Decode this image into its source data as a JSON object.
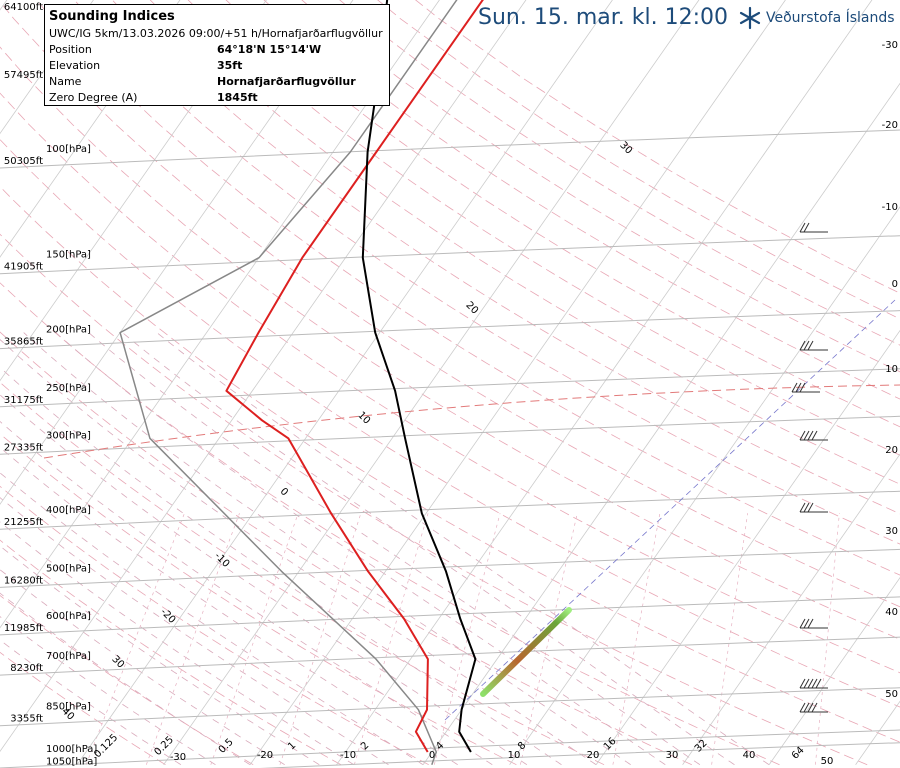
{
  "header": {
    "date": "Sun. 15. mar. kl. 12:00",
    "brand": "Veðurstofa Íslands"
  },
  "info_box": {
    "title": "Sounding Indices",
    "model_line": "UWC/IG 5km/13.03.2026 09:00/+51 h/Hornafjarðarflugvöllur",
    "rows": [
      {
        "label": "Position",
        "value": "64°18'N 15°14'W"
      },
      {
        "label": "Elevation",
        "value": "35ft"
      },
      {
        "label": "Name",
        "value": "Hornafjarðarflugvöllur"
      },
      {
        "label": "Zero Degree (A)",
        "value": "1845ft"
      }
    ]
  },
  "chart_data": {
    "type": "line",
    "colors": {
      "temperature": "#dd2020",
      "dewpoint": "#000000",
      "parcel": "#888888",
      "isobar": "#bbbbbb"
    },
    "pressure_levels": [
      {
        "hpa": 100,
        "label": "100[hPa]",
        "alt": "50305ft"
      },
      {
        "hpa": 150,
        "label": "150[hPa]",
        "alt": "41905ft"
      },
      {
        "hpa": 200,
        "label": "200[hPa]",
        "alt": "35865ft"
      },
      {
        "hpa": 250,
        "label": "250[hPa]",
        "alt": "31175ft"
      },
      {
        "hpa": 300,
        "label": "300[hPa]",
        "alt": "27335ft"
      },
      {
        "hpa": 400,
        "label": "400[hPa]",
        "alt": "21255ft"
      },
      {
        "hpa": 500,
        "label": "500[hPa]",
        "alt": "16280ft"
      },
      {
        "hpa": 600,
        "label": "600[hPa]",
        "alt": "11985ft"
      },
      {
        "hpa": 700,
        "label": "700[hPa]",
        "alt": "8230ft"
      },
      {
        "hpa": 850,
        "label": "850[hPa]",
        "alt": "3355ft"
      },
      {
        "hpa": 1000,
        "label": "1000[hPa]",
        "alt": ""
      },
      {
        "hpa": 1050,
        "label": "1050[hPa]",
        "alt": ""
      }
    ],
    "top_altitudes": [
      "64100ft",
      "57495ft"
    ],
    "right_axis": [
      "-30",
      "-20",
      "-10",
      "0",
      "10",
      "20",
      "30",
      "40",
      "50"
    ],
    "bottom_temps": [
      "-30",
      "-20",
      "-10",
      "0",
      "10",
      "20",
      "30",
      "40",
      "50"
    ],
    "mixing_ratios": [
      "0.125",
      "0.25",
      "0.5",
      "1",
      "2",
      "4",
      "8",
      "16",
      "32",
      "64"
    ],
    "isotherm_labels": [
      "30",
      "20",
      "10",
      "0",
      "-10",
      "-20",
      "30",
      "40"
    ],
    "temperature": [
      [
        1000,
        -0.5
      ],
      [
        925,
        -3.5
      ],
      [
        850,
        -4.0
      ],
      [
        700,
        -8.0
      ],
      [
        600,
        -14.0
      ],
      [
        500,
        -22.0
      ],
      [
        400,
        -31.0
      ],
      [
        300,
        -42.0
      ],
      [
        280,
        -46.5
      ],
      [
        250,
        -53.0
      ],
      [
        200,
        -54.0
      ],
      [
        150,
        -55.0
      ],
      [
        100,
        -55.0
      ],
      [
        70,
        -55.0
      ],
      [
        50,
        -55.0
      ]
    ],
    "dewpoint": [
      [
        1000,
        4.5
      ],
      [
        925,
        1.5
      ],
      [
        850,
        0.0
      ],
      [
        700,
        -2.5
      ],
      [
        600,
        -7.5
      ],
      [
        500,
        -13.0
      ],
      [
        400,
        -20.5
      ],
      [
        300,
        -28.5
      ],
      [
        250,
        -33.5
      ],
      [
        200,
        -40.5
      ],
      [
        150,
        -48.0
      ],
      [
        100,
        -56.0
      ],
      [
        70,
        -62.0
      ],
      [
        50,
        -68.0
      ]
    ],
    "parcel": [
      [
        1050,
        1.0
      ],
      [
        1000,
        0.5
      ],
      [
        850,
        -5.0
      ],
      [
        700,
        -14.0
      ],
      [
        500,
        -32.0
      ],
      [
        300,
        -58.0
      ],
      [
        200,
        -70.0
      ],
      [
        150,
        -60.0
      ],
      [
        100,
        -58.0
      ],
      [
        50,
        -58.0
      ]
    ]
  }
}
